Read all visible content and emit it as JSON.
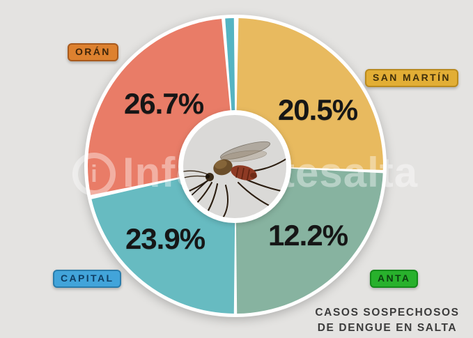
{
  "caption": {
    "line1": "CASOS SOSPECHOSOS",
    "line2": "DE DENGUE EN SALTA"
  },
  "watermark": {
    "icon_glyph": "i",
    "text": "Informatesalta"
  },
  "colors": {
    "background": "#e4e3e1",
    "pie_ring": "#ffffff",
    "center_circle": "#dad9d7",
    "percent_text": "#161616",
    "caption_text": "#3c3c3c"
  },
  "chart_data": {
    "type": "pie",
    "title": "CASOS SOSPECHOSOS DE DENGUE EN SALTA",
    "legend_position": "badges around donut",
    "center": "gray disc with Aedes aegypti mosquito photo",
    "note": "donut chart; printed percentages do not sum to 100, a small unlabeled teal sliver sits at top; drawn angles (deg clockwise from 12 o'clock) reproduced as rendered",
    "slices": [
      {
        "slug": "san-martin",
        "label": "SAN MARTÍN",
        "value": 20.5,
        "display": "20.5%",
        "color": "#e8ba5f",
        "start": 1.2,
        "end": 91.6,
        "badge": {
          "bg": "#e2ae35",
          "border": "#b98a1e",
          "text": "#3f2f0c"
        }
      },
      {
        "slug": "anta",
        "label": "ANTA",
        "value": 12.2,
        "display": "12.2%",
        "color": "#87b3a0",
        "start": 92.8,
        "end": 179.4,
        "badge": {
          "bg": "#28b12c",
          "border": "#158a1a",
          "text": "#0c3f10"
        }
      },
      {
        "slug": "capital",
        "label": "CAPITAL",
        "value": 23.9,
        "display": "23.9%",
        "color": "#67bbc1",
        "start": 180.6,
        "end": 257.0,
        "badge": {
          "bg": "#42a4da",
          "border": "#2a7cab",
          "text": "#0f3d63"
        }
      },
      {
        "slug": "oran",
        "label": "ORÁN",
        "value": 26.7,
        "display": "26.7%",
        "color": "#e97c67",
        "start": 258.6,
        "end": 354.6,
        "badge": {
          "bg": "#dd812f",
          "border": "#a85a1d",
          "text": "#40260a"
        }
      },
      {
        "slug": "sliver",
        "label": "",
        "value": null,
        "display": "",
        "color": "#55b4c2",
        "start": 356.0,
        "end": 359.4,
        "badge": null
      }
    ]
  }
}
